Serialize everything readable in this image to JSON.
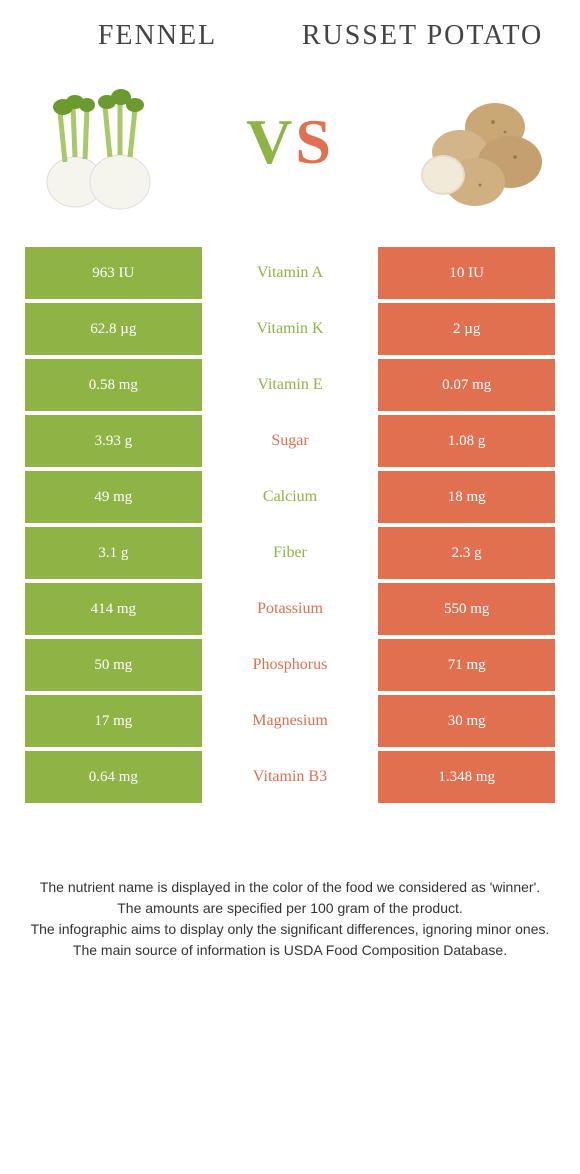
{
  "titles": {
    "left": "Fennel",
    "right": "Russet potato"
  },
  "vs": {
    "v": "V",
    "s": "S"
  },
  "colors": {
    "green": "#8fb445",
    "orange": "#e07050",
    "bg": "#ffffff"
  },
  "rows": [
    {
      "left": "963 IU",
      "label": "Vitamin A",
      "right": "10 IU",
      "winner": "green"
    },
    {
      "left": "62.8 µg",
      "label": "Vitamin K",
      "right": "2 µg",
      "winner": "green"
    },
    {
      "left": "0.58 mg",
      "label": "Vitamin E",
      "right": "0.07 mg",
      "winner": "green"
    },
    {
      "left": "3.93 g",
      "label": "Sugar",
      "right": "1.08 g",
      "winner": "orange"
    },
    {
      "left": "49 mg",
      "label": "Calcium",
      "right": "18 mg",
      "winner": "green"
    },
    {
      "left": "3.1 g",
      "label": "Fiber",
      "right": "2.3 g",
      "winner": "green"
    },
    {
      "left": "414 mg",
      "label": "Potassium",
      "right": "550 mg",
      "winner": "orange"
    },
    {
      "left": "50 mg",
      "label": "Phosphorus",
      "right": "71 mg",
      "winner": "orange"
    },
    {
      "left": "17 mg",
      "label": "Magnesium",
      "right": "30 mg",
      "winner": "orange"
    },
    {
      "left": "0.64 mg",
      "label": "Vitamin B3",
      "right": "1.348 mg",
      "winner": "orange"
    }
  ],
  "footer": {
    "line1": "The nutrient name is displayed in the color of the food we considered as 'winner'.",
    "line2": "The amounts are specified per 100 gram of the product.",
    "line3": "The infographic aims to display only the significant differences, ignoring minor ones.",
    "line4": "The main source of information is USDA Food Composition Database."
  }
}
